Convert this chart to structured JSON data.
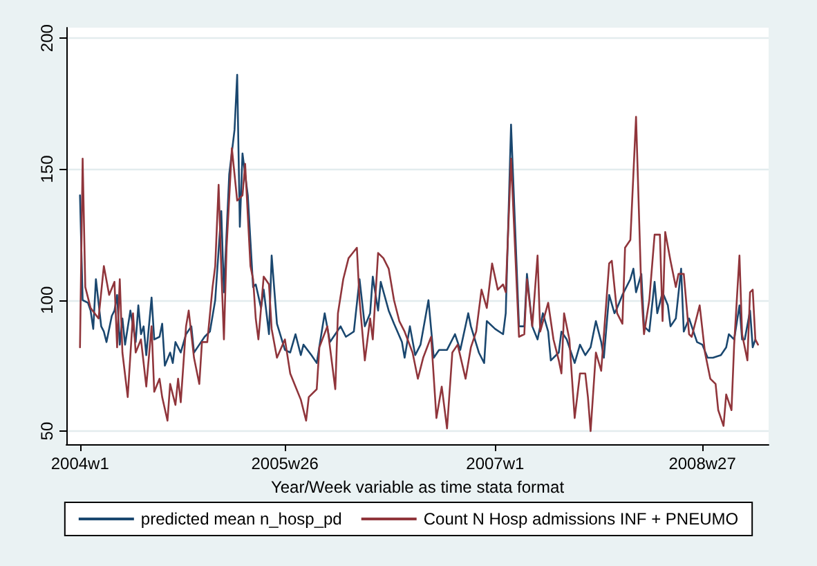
{
  "chart_data": {
    "type": "line",
    "xlabel": "Year/Week variable as time stata format",
    "xlim": [
      "2003-11-26",
      "2008-12-23"
    ],
    "ylim": [
      45,
      204
    ],
    "xticks": [
      {
        "value": "2004-01-01",
        "label": "2004w1"
      },
      {
        "value": "2005-06-25",
        "label": "2005w26"
      },
      {
        "value": "2007-01-01",
        "label": "2007w1"
      },
      {
        "value": "2008-07-01",
        "label": "2008w27"
      }
    ],
    "yticks": [
      50,
      100,
      150,
      200
    ],
    "grid": "y",
    "legend": "bottom",
    "marker": "none",
    "line_style": "solid",
    "series": [
      {
        "name": "predicted mean n_hosp_pd",
        "color": "#1a476f",
        "x": [
          "2004-01-01",
          "2004-01-08",
          "2004-01-22",
          "2004-01-29",
          "2004-02-05",
          "2004-02-12",
          "2004-02-26",
          "2004-03-04",
          "2004-03-11",
          "2004-03-25",
          "2004-04-01",
          "2004-04-08",
          "2004-04-15",
          "2004-04-22",
          "2004-04-29",
          "2004-05-13",
          "2004-05-27",
          "2004-06-03",
          "2004-06-10",
          "2004-06-17",
          "2004-06-24",
          "2004-07-08",
          "2004-07-15",
          "2004-07-29",
          "2004-08-05",
          "2004-08-12",
          "2004-08-26",
          "2004-09-02",
          "2004-09-09",
          "2004-09-23",
          "2004-10-07",
          "2004-10-21",
          "2004-10-28",
          "2004-11-11",
          "2004-11-25",
          "2004-12-09",
          "2004-12-23",
          "2005-01-08",
          "2005-01-15",
          "2005-01-29",
          "2005-02-12",
          "2005-02-19",
          "2005-02-26",
          "2005-03-05",
          "2005-03-19",
          "2005-04-02",
          "2005-04-09",
          "2005-04-23",
          "2005-04-30",
          "2005-05-14",
          "2005-05-21",
          "2005-06-04",
          "2005-06-25",
          "2005-07-09",
          "2005-07-23",
          "2005-08-06",
          "2005-08-13",
          "2005-09-03",
          "2005-09-17",
          "2005-10-08",
          "2005-10-22",
          "2005-11-05",
          "2005-11-19",
          "2005-12-03",
          "2005-12-24",
          "2006-01-08",
          "2006-01-22",
          "2006-02-05",
          "2006-02-12",
          "2006-02-26",
          "2006-03-05",
          "2006-03-26",
          "2006-04-09",
          "2006-04-30",
          "2006-05-07",
          "2006-05-21",
          "2006-06-04",
          "2006-06-18",
          "2006-07-09",
          "2006-07-23",
          "2006-08-06",
          "2006-08-27",
          "2006-09-17",
          "2006-10-01",
          "2006-10-22",
          "2006-10-29",
          "2006-11-19",
          "2006-12-03",
          "2006-12-10",
          "2007-01-01",
          "2007-01-22",
          "2007-01-29",
          "2007-02-12",
          "2007-03-05",
          "2007-03-19",
          "2007-03-26",
          "2007-04-09",
          "2007-04-23",
          "2007-05-07",
          "2007-05-21",
          "2007-05-28",
          "2007-06-18",
          "2007-06-25",
          "2007-07-09",
          "2007-07-23",
          "2007-07-30",
          "2007-08-13",
          "2007-08-27",
          "2007-09-10",
          "2007-09-24",
          "2007-10-08",
          "2007-10-15",
          "2007-10-29",
          "2007-11-12",
          "2007-11-19",
          "2007-12-03",
          "2007-12-24",
          "2008-01-01",
          "2008-01-08",
          "2008-01-22",
          "2008-01-29",
          "2008-02-12",
          "2008-02-26",
          "2008-03-04",
          "2008-03-18",
          "2008-04-01",
          "2008-04-08",
          "2008-04-22",
          "2008-05-06",
          "2008-05-13",
          "2008-05-27",
          "2008-06-03",
          "2008-06-17",
          "2008-07-01",
          "2008-07-15",
          "2008-07-29",
          "2008-08-19",
          "2008-09-02",
          "2008-09-09",
          "2008-09-23",
          "2008-10-07",
          "2008-10-14",
          "2008-10-21",
          "2008-11-04",
          "2008-11-11",
          "2008-11-18"
        ],
        "values": [
          140,
          100,
          99,
          96,
          89,
          108,
          90,
          88,
          84,
          94,
          96,
          102,
          83,
          93,
          83,
          96,
          84,
          98,
          87,
          90,
          79,
          101,
          85,
          86,
          91,
          75,
          80,
          76,
          84,
          80,
          87,
          90,
          80,
          83,
          86,
          88,
          100,
          134,
          103,
          148,
          165,
          186,
          128,
          156,
          140,
          105,
          106,
          97,
          104,
          87,
          117,
          91,
          81,
          80,
          87,
          79,
          83,
          79,
          76,
          95,
          84,
          87,
          90,
          86,
          88,
          108,
          90,
          95,
          109,
          96,
          107,
          96,
          91,
          84,
          78,
          90,
          79,
          83,
          100,
          78,
          81,
          81,
          87,
          81,
          95,
          90,
          80,
          76,
          92,
          89,
          87,
          95,
          167,
          90,
          90,
          110,
          90,
          85,
          95,
          88,
          77,
          80,
          88,
          85,
          79,
          76,
          83,
          79,
          82,
          92,
          84,
          78,
          102,
          95,
          97,
          102,
          108,
          112,
          103,
          110,
          90,
          88,
          107,
          95,
          103,
          98,
          90,
          93,
          112,
          88,
          93,
          90,
          84,
          83,
          78,
          78,
          79,
          82,
          87,
          85,
          98,
          85,
          85,
          96,
          82,
          85
        ]
      },
      {
        "name": "Count N Hosp admissions INF + PNEUMO",
        "color": "#90353b",
        "x": [
          "2004-01-01",
          "2004-01-08",
          "2004-01-15",
          "2004-01-29",
          "2004-02-19",
          "2004-03-04",
          "2004-03-18",
          "2004-04-01",
          "2004-04-08",
          "2004-04-15",
          "2004-04-22",
          "2004-05-06",
          "2004-05-20",
          "2004-05-27",
          "2004-06-10",
          "2004-06-24",
          "2004-07-08",
          "2004-07-15",
          "2004-07-29",
          "2004-08-05",
          "2004-08-19",
          "2004-08-26",
          "2004-09-09",
          "2004-09-16",
          "2004-09-23",
          "2004-10-07",
          "2004-10-14",
          "2004-10-28",
          "2004-11-11",
          "2004-11-18",
          "2004-12-02",
          "2004-12-16",
          "2004-12-23",
          "2005-01-01",
          "2005-01-08",
          "2005-01-15",
          "2005-01-22",
          "2005-02-05",
          "2005-02-19",
          "2005-03-05",
          "2005-03-12",
          "2005-03-26",
          "2005-04-02",
          "2005-04-09",
          "2005-04-16",
          "2005-04-30",
          "2005-05-14",
          "2005-05-21",
          "2005-06-04",
          "2005-06-25",
          "2005-07-09",
          "2005-07-23",
          "2005-08-06",
          "2005-08-20",
          "2005-08-27",
          "2005-09-17",
          "2005-09-24",
          "2005-10-15",
          "2005-11-05",
          "2005-11-12",
          "2005-11-26",
          "2005-12-10",
          "2006-01-01",
          "2006-01-08",
          "2006-01-22",
          "2006-02-05",
          "2006-02-12",
          "2006-02-26",
          "2006-03-12",
          "2006-03-26",
          "2006-04-09",
          "2006-04-23",
          "2006-05-07",
          "2006-05-28",
          "2006-06-11",
          "2006-06-25",
          "2006-07-16",
          "2006-07-30",
          "2006-08-13",
          "2006-08-27",
          "2006-09-10",
          "2006-09-24",
          "2006-10-15",
          "2006-10-29",
          "2006-11-12",
          "2006-11-26",
          "2006-12-10",
          "2006-12-24",
          "2007-01-08",
          "2007-01-22",
          "2007-01-29",
          "2007-02-12",
          "2007-03-05",
          "2007-03-19",
          "2007-03-26",
          "2007-04-09",
          "2007-04-23",
          "2007-04-30",
          "2007-05-21",
          "2007-06-04",
          "2007-06-18",
          "2007-06-25",
          "2007-07-02",
          "2007-07-16",
          "2007-07-30",
          "2007-08-13",
          "2007-08-27",
          "2007-09-03",
          "2007-09-10",
          "2007-09-24",
          "2007-10-08",
          "2007-10-29",
          "2007-11-05",
          "2007-11-19",
          "2007-12-03",
          "2007-12-10",
          "2007-12-24",
          "2008-01-08",
          "2008-01-22",
          "2008-01-29",
          "2008-02-12",
          "2008-02-26",
          "2008-03-11",
          "2008-03-18",
          "2008-03-25",
          "2008-04-08",
          "2008-04-22",
          "2008-04-29",
          "2008-05-13",
          "2008-05-27",
          "2008-06-03",
          "2008-06-24",
          "2008-07-08",
          "2008-07-22",
          "2008-08-05",
          "2008-08-12",
          "2008-08-26",
          "2008-09-02",
          "2008-09-16",
          "2008-09-23",
          "2008-10-07",
          "2008-10-14",
          "2008-10-28",
          "2008-11-04",
          "2008-11-11",
          "2008-11-18",
          "2008-11-25"
        ],
        "values": [
          82,
          154,
          105,
          97,
          93,
          113,
          102,
          107,
          82,
          108,
          80,
          63,
          95,
          80,
          85,
          67,
          90,
          65,
          70,
          63,
          54,
          68,
          60,
          70,
          61,
          90,
          96,
          78,
          68,
          84,
          84,
          105,
          113,
          144,
          112,
          85,
          120,
          158,
          138,
          140,
          152,
          113,
          108,
          93,
          85,
          109,
          106,
          89,
          78,
          85,
          72,
          67,
          62,
          54,
          63,
          66,
          82,
          90,
          66,
          95,
          108,
          116,
          120,
          100,
          77,
          93,
          85,
          118,
          116,
          112,
          100,
          92,
          88,
          80,
          70,
          78,
          86,
          55,
          67,
          51,
          80,
          83,
          70,
          82,
          88,
          104,
          97,
          114,
          104,
          106,
          103,
          154,
          86,
          87,
          108,
          90,
          117,
          88,
          99,
          85,
          77,
          72,
          95,
          85,
          55,
          72,
          72,
          63,
          50,
          80,
          73,
          114,
          115,
          95,
          91,
          120,
          123,
          170,
          103,
          87,
          100,
          125,
          125,
          92,
          126,
          115,
          105,
          110,
          110,
          87,
          86,
          98,
          80,
          70,
          68,
          58,
          52,
          64,
          58,
          83,
          117,
          87,
          77,
          103,
          104,
          85,
          83
        ]
      }
    ]
  }
}
